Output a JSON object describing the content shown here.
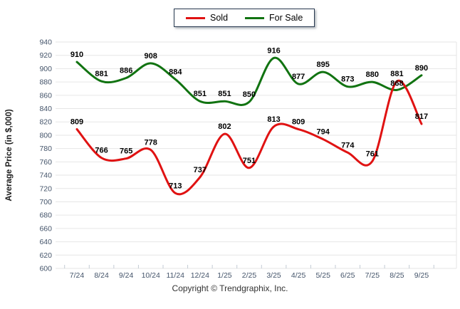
{
  "legend": {
    "items": [
      {
        "label": "Sold",
        "color": "#e01212"
      },
      {
        "label": "For Sale",
        "color": "#117311"
      }
    ]
  },
  "y_axis": {
    "title": "Average Price (in $,000)",
    "min": 600,
    "max": 940,
    "step": 20
  },
  "x_axis": {
    "categories": [
      "7/24",
      "8/24",
      "9/24",
      "10/24",
      "11/24",
      "12/24",
      "1/25",
      "2/25",
      "3/25",
      "4/25",
      "5/25",
      "6/25",
      "7/25",
      "8/25",
      "9/25"
    ]
  },
  "chart_data": {
    "type": "line",
    "categories": [
      "7/24",
      "8/24",
      "9/24",
      "10/24",
      "11/24",
      "12/24",
      "1/25",
      "2/25",
      "3/25",
      "4/25",
      "5/25",
      "6/25",
      "7/25",
      "8/25",
      "9/25"
    ],
    "series": [
      {
        "name": "Sold",
        "color": "#e01212",
        "values": [
          809,
          766,
          765,
          778,
          713,
          737,
          802,
          751,
          813,
          809,
          794,
          774,
          761,
          881,
          817
        ]
      },
      {
        "name": "For Sale",
        "color": "#117311",
        "values": [
          910,
          881,
          886,
          908,
          884,
          851,
          851,
          850,
          916,
          877,
          895,
          873,
          880,
          868,
          890
        ]
      }
    ],
    "title": "",
    "xlabel": "",
    "ylabel": "Average Price (in $,000)",
    "ylim": [
      600,
      940
    ],
    "ytick_step": 20,
    "grid": true,
    "legend_position": "top",
    "data_labels": true
  },
  "footer": {
    "copyright": "Copyright © Trendgraphix, Inc."
  },
  "colors": {
    "gridline": "#e6e6e6",
    "axis_tick": "#c3cbd4",
    "tick_text": "#44546a",
    "data_label": "#000000"
  }
}
